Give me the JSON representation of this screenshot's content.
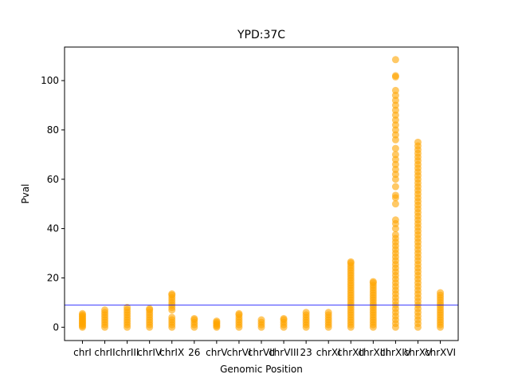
{
  "chart_data": {
    "type": "strip",
    "title": "YPD:37C",
    "x_label": "Genomic Position",
    "y_label": "Pval",
    "categories": [
      "chrI",
      "chrII",
      "chrIII",
      "chrIV",
      "chrIX",
      "26",
      "chrV",
      "chrVI",
      "chrVII",
      "chrVIII",
      "23",
      "chrXI",
      "chrXII",
      "chrXIII",
      "chrXIV",
      "chrXV",
      "chrXVI"
    ],
    "color": "#ffa500",
    "values": [
      [
        0,
        0.5,
        1,
        1.5,
        2,
        2.5,
        3,
        3.5,
        4,
        4.5,
        5,
        5.5
      ],
      [
        0,
        1,
        2,
        3,
        4,
        5,
        6,
        7
      ],
      [
        0,
        1,
        2,
        3,
        4,
        5,
        6,
        7,
        8
      ],
      [
        0,
        1,
        2,
        3,
        4,
        5,
        6,
        7,
        7.5
      ],
      [
        0,
        1,
        2,
        3,
        4,
        7,
        8,
        9,
        10,
        11,
        12,
        13,
        13.5
      ],
      [
        0,
        1,
        2,
        3,
        3.5
      ],
      [
        0,
        0.5,
        1,
        1.5,
        2,
        2.5
      ],
      [
        0,
        1,
        2,
        3,
        4,
        5,
        5.5
      ],
      [
        0,
        1,
        2,
        3
      ],
      [
        0,
        1,
        2,
        3,
        3.5
      ],
      [
        0,
        1,
        2,
        3,
        4,
        5,
        6
      ],
      [
        0,
        1,
        2,
        3,
        4,
        5,
        6
      ],
      [
        0,
        1,
        2,
        3,
        4,
        5,
        6,
        7,
        8,
        9,
        10,
        11,
        12,
        13,
        14,
        15,
        16,
        17,
        18,
        19,
        20,
        21,
        22,
        23,
        24,
        25,
        26,
        26.5
      ],
      [
        0,
        1,
        2,
        3,
        4,
        5,
        6,
        7,
        8,
        9,
        10,
        11,
        12,
        13,
        14,
        15,
        16,
        17,
        18,
        18.5
      ],
      [
        0,
        1.5,
        3,
        4.5,
        6,
        7.5,
        9,
        10.5,
        12,
        13.5,
        15,
        16.5,
        18,
        19.5,
        21,
        22.5,
        24,
        25.5,
        27,
        28.5,
        30,
        31.5,
        33,
        34.5,
        36,
        37.5,
        40,
        42,
        43.5,
        50,
        52.5,
        53.5,
        57,
        60,
        62,
        64,
        66,
        68,
        70,
        72.5,
        76,
        78,
        80,
        82,
        84,
        86,
        88,
        90,
        92,
        94,
        96,
        101.5,
        102,
        108.5
      ],
      [
        0,
        1.5,
        3,
        4.5,
        6,
        7.5,
        9,
        10.5,
        12,
        13.5,
        15,
        16.5,
        18,
        19.5,
        21,
        22.5,
        24,
        25.5,
        27,
        28.5,
        30,
        31.5,
        33,
        34.5,
        36,
        37.5,
        39,
        40.5,
        42,
        43.5,
        45,
        46.5,
        48,
        49.5,
        51,
        52.5,
        54,
        55.5,
        57,
        58.5,
        60,
        61.5,
        63,
        64.5,
        66,
        67.5,
        69,
        70.5,
        72,
        73.5,
        75
      ],
      [
        0,
        1,
        2,
        3,
        4,
        5,
        6,
        7,
        8,
        9,
        10,
        11,
        12,
        13,
        14
      ]
    ],
    "threshold": 9,
    "threshold_color": "#0000ff",
    "ylim": [
      -5.4,
      113.6
    ],
    "yticks": [
      0,
      20,
      40,
      60,
      80,
      100
    ]
  }
}
